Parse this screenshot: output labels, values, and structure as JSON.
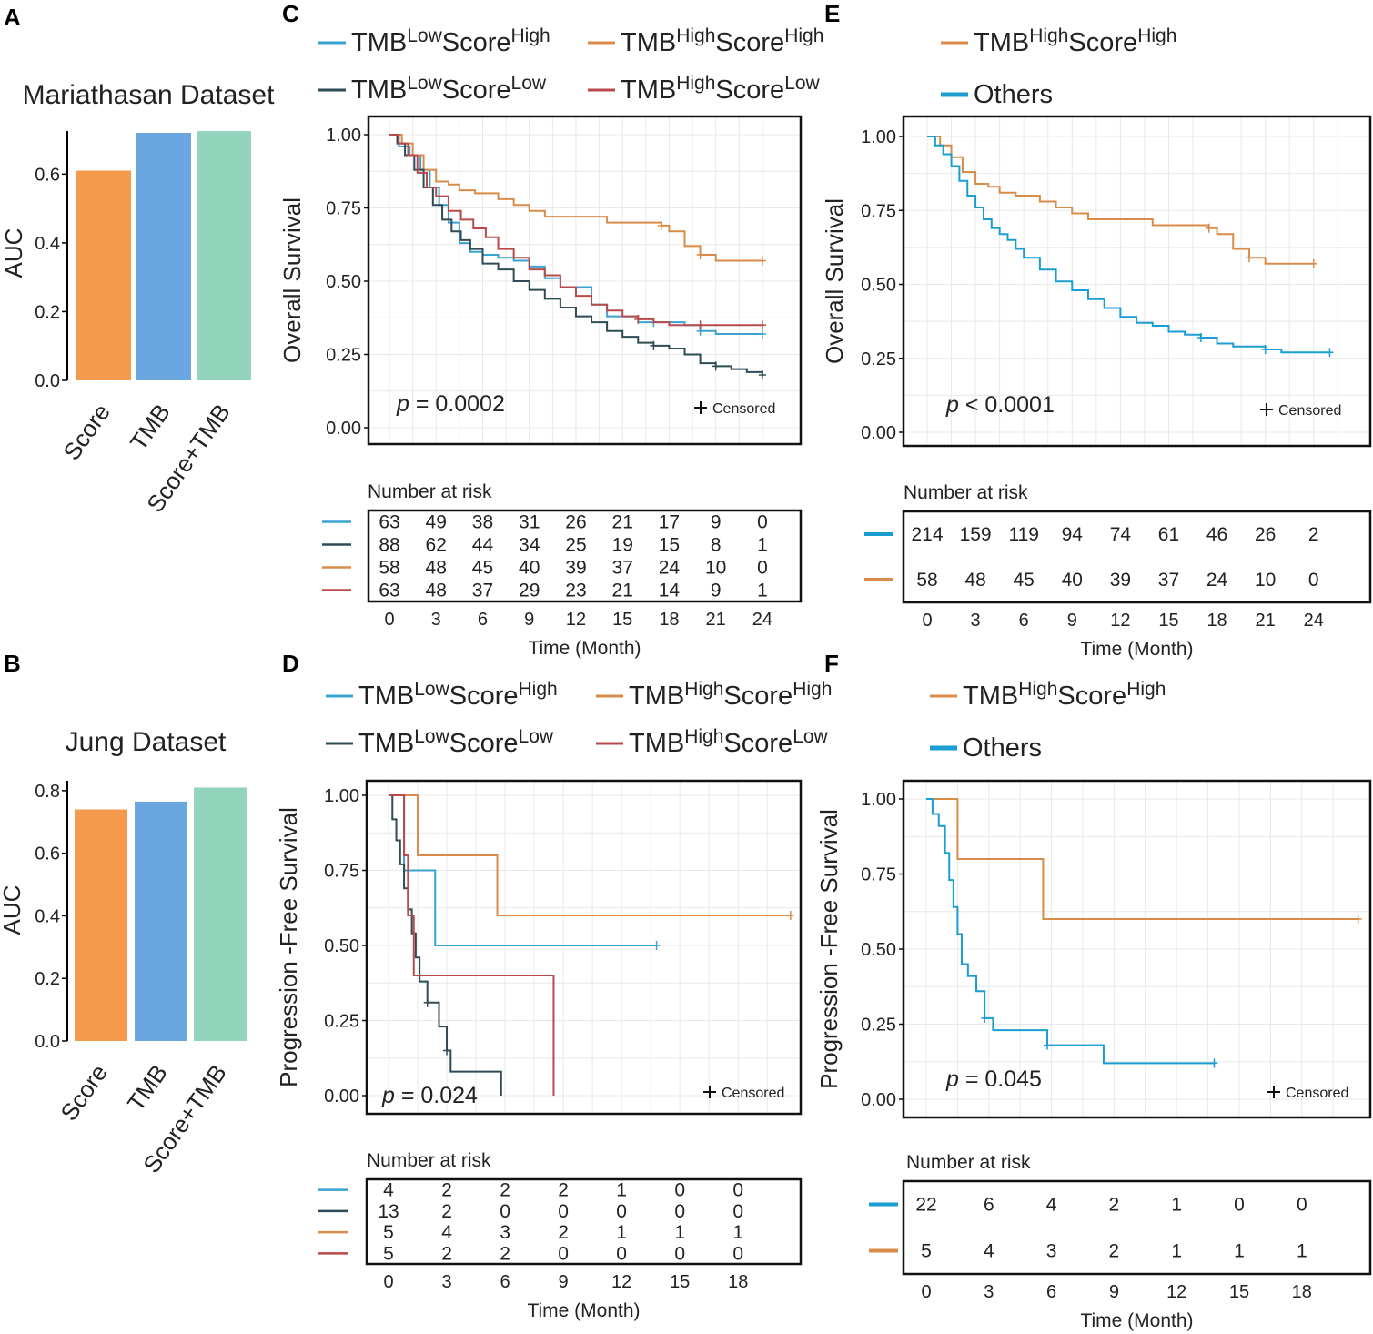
{
  "chart_data": [
    {
      "id": "A",
      "type": "bar",
      "panel_label": "A",
      "title": "Mariathasan Dataset",
      "ylabel": "AUC",
      "categories": [
        "Score",
        "TMB",
        "Score+TMB"
      ],
      "values": [
        0.61,
        0.72,
        0.725
      ],
      "colors": [
        "#f49a4d",
        "#6aa6df",
        "#93d4bd"
      ],
      "ylim": [
        0,
        0.72
      ],
      "yticks": [
        "0.0",
        "0.2",
        "0.4",
        "0.6"
      ]
    },
    {
      "id": "B",
      "type": "bar",
      "panel_label": "B",
      "title": "Jung Dataset",
      "ylabel": "AUC",
      "categories": [
        "Score",
        "TMB",
        "Score+TMB"
      ],
      "values": [
        0.74,
        0.765,
        0.81
      ],
      "colors": [
        "#f49a4d",
        "#6aa6df",
        "#93d4bd"
      ],
      "ylim": [
        0,
        0.82
      ],
      "yticks": [
        "0.0",
        "0.2",
        "0.4",
        "0.6",
        "0.8"
      ]
    },
    {
      "id": "C",
      "type": "line",
      "panel_label": "C",
      "ylabel": "Overall Survival",
      "xlabel": "Time (Month)",
      "p_prefix": "p",
      "p_text": " = 0.0002",
      "censored_label": "Censored",
      "risk_title": "Number at risk",
      "xticks": [
        "0",
        "3",
        "6",
        "9",
        "12",
        "15",
        "18",
        "21",
        "24"
      ],
      "yticks": [
        "0.00",
        "0.25",
        "0.50",
        "0.75",
        "1.00"
      ],
      "legend": [
        {
          "pre": "TMB",
          "sup1": "Low",
          "mid": "Score",
          "sup2": "High",
          "color": "#3aa3cf"
        },
        {
          "pre": "TMB",
          "sup1": "High",
          "mid": "Score",
          "sup2": "High",
          "color": "#d98c49"
        },
        {
          "pre": "TMB",
          "sup1": "Low",
          "mid": "Score",
          "sup2": "Low",
          "color": "#2f4b55"
        },
        {
          "pre": "TMB",
          "sup1": "High",
          "mid": "Score",
          "sup2": "Low",
          "color": "#b94a4c"
        }
      ],
      "risk_colors": [
        "#3aa3cf",
        "#2f4b55",
        "#d98c49",
        "#b94a4c"
      ],
      "risk": [
        [
          "63",
          "49",
          "38",
          "31",
          "26",
          "21",
          "17",
          "9",
          "0"
        ],
        [
          "88",
          "62",
          "44",
          "34",
          "25",
          "19",
          "15",
          "8",
          "1"
        ],
        [
          "58",
          "48",
          "45",
          "40",
          "39",
          "37",
          "24",
          "10",
          "0"
        ],
        [
          "63",
          "48",
          "37",
          "29",
          "23",
          "21",
          "14",
          "9",
          "1"
        ]
      ],
      "series": [
        {
          "name": "TMB Low Score High",
          "color": "#3aa3cf",
          "x": [
            0,
            0.6,
            1.3,
            2,
            2.6,
            3.2,
            3.8,
            4.5,
            5.2,
            6,
            7,
            8,
            9,
            10,
            11,
            13,
            14,
            16,
            17,
            18,
            19,
            20,
            21,
            22,
            24
          ],
          "y": [
            1,
            0.96,
            0.93,
            0.88,
            0.82,
            0.76,
            0.7,
            0.63,
            0.6,
            0.59,
            0.58,
            0.57,
            0.55,
            0.51,
            0.48,
            0.42,
            0.38,
            0.36,
            0.36,
            0.36,
            0.35,
            0.33,
            0.32,
            0.32,
            0.32
          ]
        },
        {
          "name": "TMB High Score High",
          "color": "#d98c49",
          "x": [
            0,
            0.8,
            1.5,
            2.2,
            3,
            3.8,
            4.5,
            5.5,
            7,
            8,
            9,
            10,
            12,
            14,
            16,
            17.5,
            18,
            19,
            20,
            21,
            22,
            24
          ],
          "y": [
            1,
            0.97,
            0.93,
            0.88,
            0.84,
            0.83,
            0.81,
            0.8,
            0.78,
            0.76,
            0.74,
            0.72,
            0.72,
            0.7,
            0.7,
            0.69,
            0.67,
            0.62,
            0.59,
            0.57,
            0.57,
            0.57
          ]
        },
        {
          "name": "TMB Low Score Low",
          "color": "#2f4b55",
          "x": [
            0,
            0.5,
            1,
            1.6,
            2.2,
            2.8,
            3.4,
            4,
            4.6,
            5.2,
            6,
            7,
            8,
            9,
            10,
            11,
            12,
            13,
            14,
            15,
            16,
            17,
            18,
            19,
            20,
            21,
            22,
            23,
            24
          ],
          "y": [
            1,
            0.97,
            0.93,
            0.88,
            0.82,
            0.76,
            0.71,
            0.67,
            0.64,
            0.61,
            0.56,
            0.54,
            0.5,
            0.47,
            0.44,
            0.41,
            0.38,
            0.36,
            0.33,
            0.31,
            0.29,
            0.28,
            0.27,
            0.25,
            0.22,
            0.21,
            0.2,
            0.19,
            0.18
          ]
        },
        {
          "name": "TMB High Score Low",
          "color": "#b94a4c",
          "x": [
            0,
            0.6,
            1.2,
            1.8,
            2.4,
            3,
            3.8,
            4.6,
            5.4,
            6.2,
            7,
            8,
            9,
            10,
            11,
            12,
            13,
            14,
            15,
            16,
            17,
            18,
            19,
            20,
            21,
            22,
            24
          ],
          "y": [
            1,
            0.97,
            0.93,
            0.87,
            0.82,
            0.79,
            0.74,
            0.71,
            0.68,
            0.65,
            0.61,
            0.58,
            0.54,
            0.52,
            0.48,
            0.45,
            0.42,
            0.4,
            0.38,
            0.37,
            0.36,
            0.35,
            0.35,
            0.35,
            0.35,
            0.35,
            0.35
          ]
        }
      ]
    },
    {
      "id": "E",
      "type": "line",
      "panel_label": "E",
      "ylabel": "Overall Survival",
      "xlabel": "Time (Month)",
      "p_prefix": "p",
      "p_text": " < 0.0001",
      "censored_label": "Censored",
      "risk_title": "Number at risk",
      "xticks": [
        "0",
        "3",
        "6",
        "9",
        "12",
        "15",
        "18",
        "21",
        "24"
      ],
      "yticks": [
        "0.00",
        "0.25",
        "0.50",
        "0.75",
        "1.00"
      ],
      "legend": [
        {
          "pre": "TMB",
          "sup1": "High",
          "mid": "Score",
          "sup2": "High",
          "color": "#d98c49"
        },
        {
          "pre": "Others",
          "sup1": "",
          "mid": "",
          "sup2": "",
          "color": "#1a9ed2"
        }
      ],
      "risk_colors": [
        "#1a9ed2",
        "#d98c49"
      ],
      "risk": [
        [
          "214",
          "159",
          "119",
          "94",
          "74",
          "61",
          "46",
          "26",
          "2"
        ],
        [
          "58",
          "48",
          "45",
          "40",
          "39",
          "37",
          "24",
          "10",
          "0"
        ]
      ],
      "series": [
        {
          "name": "TMB High Score High",
          "color": "#d98c49",
          "x": [
            0,
            0.8,
            1.5,
            2.2,
            3,
            3.8,
            4.5,
            5.5,
            7,
            8,
            9,
            10,
            12,
            14,
            16,
            17.5,
            18,
            19,
            20,
            21,
            22,
            24
          ],
          "y": [
            1,
            0.97,
            0.93,
            0.88,
            0.84,
            0.83,
            0.81,
            0.8,
            0.78,
            0.76,
            0.74,
            0.72,
            0.72,
            0.7,
            0.7,
            0.69,
            0.67,
            0.62,
            0.59,
            0.57,
            0.57,
            0.57
          ]
        },
        {
          "name": "Others",
          "color": "#1a9ed2",
          "x": [
            0,
            0.5,
            1,
            1.5,
            2,
            2.5,
            3,
            3.5,
            4,
            4.5,
            5,
            5.5,
            6,
            7,
            8,
            9,
            10,
            11,
            12,
            13,
            14,
            15,
            16,
            17,
            18,
            19,
            20,
            21,
            22,
            23,
            24,
            25
          ],
          "y": [
            1,
            0.97,
            0.94,
            0.9,
            0.85,
            0.8,
            0.76,
            0.72,
            0.69,
            0.67,
            0.65,
            0.62,
            0.59,
            0.55,
            0.51,
            0.48,
            0.45,
            0.42,
            0.39,
            0.37,
            0.36,
            0.34,
            0.33,
            0.32,
            0.3,
            0.29,
            0.29,
            0.28,
            0.27,
            0.27,
            0.27,
            0.27
          ]
        }
      ]
    },
    {
      "id": "D",
      "type": "line",
      "panel_label": "D",
      "ylabel": "Progression -Free Survival",
      "xlabel": "Time (Month)",
      "p_prefix": "p",
      "p_text": " = 0.024",
      "censored_label": "Censored",
      "risk_title": "Number at risk",
      "xticks": [
        "0",
        "3",
        "6",
        "9",
        "12",
        "15",
        "18"
      ],
      "yticks": [
        "0.00",
        "0.25",
        "0.50",
        "0.75",
        "1.00"
      ],
      "legend": [
        {
          "pre": "TMB",
          "sup1": "Low",
          "mid": "Score",
          "sup2": "High",
          "color": "#3aa3cf"
        },
        {
          "pre": "TMB",
          "sup1": "High",
          "mid": "Score",
          "sup2": "High",
          "color": "#d98c49"
        },
        {
          "pre": "TMB",
          "sup1": "Low",
          "mid": "Score",
          "sup2": "Low",
          "color": "#2f4b55"
        },
        {
          "pre": "TMB",
          "sup1": "High",
          "mid": "Score",
          "sup2": "Low",
          "color": "#b94a4c"
        }
      ],
      "risk_colors": [
        "#3aa3cf",
        "#2f4b55",
        "#d98c49",
        "#b94a4c"
      ],
      "risk": [
        [
          "4",
          "2",
          "2",
          "2",
          "1",
          "0",
          "0"
        ],
        [
          "13",
          "2",
          "0",
          "0",
          "0",
          "0",
          "0"
        ],
        [
          "5",
          "4",
          "3",
          "2",
          "1",
          "1",
          "1"
        ],
        [
          "5",
          "2",
          "2",
          "0",
          "0",
          "0",
          "0"
        ]
      ],
      "series": [
        {
          "name": "TMB Low Score High",
          "color": "#3aa3cf",
          "x": [
            0,
            0.8,
            1,
            2.4,
            13.8
          ],
          "y": [
            1,
            0.75,
            0.75,
            0.5,
            0.5
          ]
        },
        {
          "name": "TMB High Score High",
          "color": "#d98c49",
          "x": [
            0,
            1.5,
            5.6,
            20.7
          ],
          "y": [
            1,
            0.8,
            0.6,
            0.6
          ]
        },
        {
          "name": "TMB Low Score Low",
          "color": "#2f4b55",
          "x": [
            0,
            0.2,
            0.4,
            0.6,
            0.8,
            1.0,
            1.2,
            1.4,
            1.6,
            2.0,
            2.6,
            3.0,
            3.2,
            5.8
          ],
          "y": [
            1,
            0.92,
            0.85,
            0.77,
            0.69,
            0.62,
            0.54,
            0.46,
            0.38,
            0.31,
            0.23,
            0.15,
            0.08,
            0
          ]
        },
        {
          "name": "TMB High Score Low",
          "color": "#b94a4c",
          "x": [
            0,
            0.8,
            1.0,
            1.3,
            8.5,
            8.5
          ],
          "y": [
            1,
            0.8,
            0.6,
            0.4,
            0.4,
            0
          ]
        }
      ]
    },
    {
      "id": "F",
      "type": "line",
      "panel_label": "F",
      "ylabel": "Progression -Free Survival",
      "xlabel": "Time (Month)",
      "p_prefix": "p",
      "p_text": " = 0.045",
      "censored_label": "Censored",
      "risk_title": "Number at risk",
      "xticks": [
        "0",
        "3",
        "6",
        "9",
        "12",
        "15",
        "18"
      ],
      "yticks": [
        "0.00",
        "0.25",
        "0.50",
        "0.75",
        "1.00"
      ],
      "legend": [
        {
          "pre": "TMB",
          "sup1": "High",
          "mid": "Score",
          "sup2": "High",
          "color": "#d98c49"
        },
        {
          "pre": "Others",
          "sup1": "",
          "mid": "",
          "sup2": "",
          "color": "#1a9ed2"
        }
      ],
      "risk_colors": [
        "#1a9ed2",
        "#d98c49"
      ],
      "risk": [
        [
          "22",
          "6",
          "4",
          "2",
          "1",
          "0",
          "0"
        ],
        [
          "5",
          "4",
          "3",
          "2",
          "1",
          "1",
          "1"
        ]
      ],
      "series": [
        {
          "name": "TMB High Score High",
          "color": "#d98c49",
          "x": [
            0,
            1.5,
            5.6,
            20.7
          ],
          "y": [
            1,
            0.8,
            0.6,
            0.6
          ]
        },
        {
          "name": "Others",
          "color": "#1a9ed2",
          "x": [
            0,
            0.3,
            0.6,
            0.9,
            1.1,
            1.3,
            1.5,
            1.7,
            2,
            2.4,
            2.8,
            3.2,
            5.8,
            8.5,
            13.8
          ],
          "y": [
            1,
            0.95,
            0.91,
            0.82,
            0.73,
            0.64,
            0.55,
            0.45,
            0.41,
            0.36,
            0.27,
            0.23,
            0.18,
            0.12,
            0.12
          ]
        }
      ]
    }
  ]
}
